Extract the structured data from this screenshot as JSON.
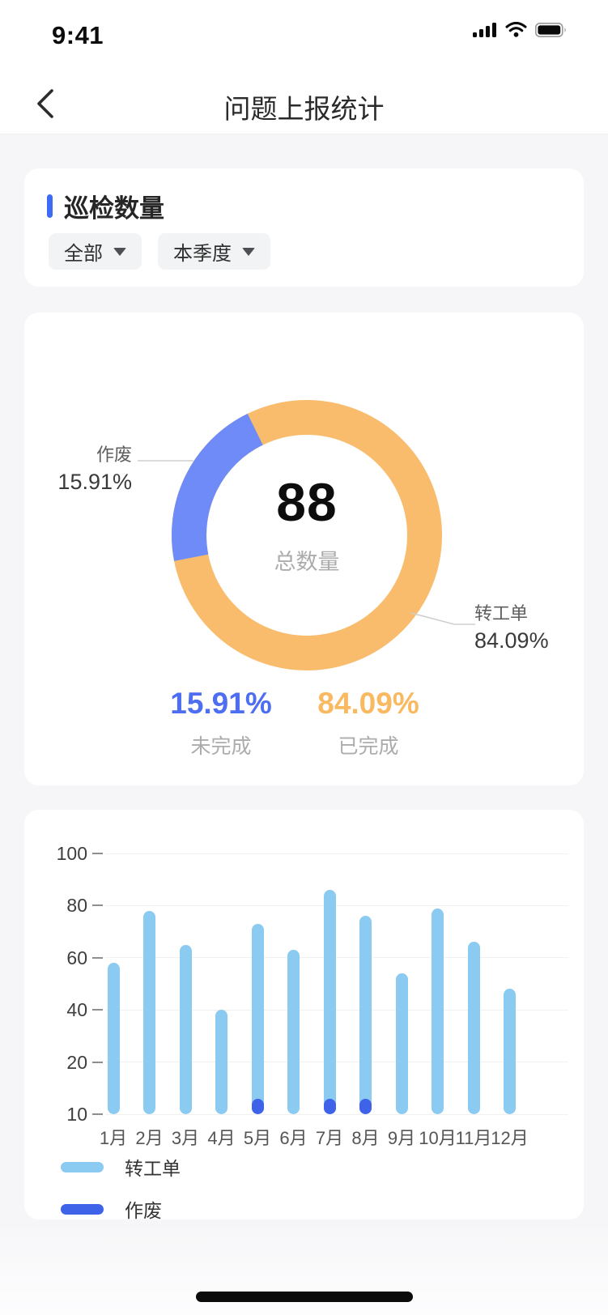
{
  "status_bar": {
    "time": "9:41",
    "icons": [
      "signal-icon",
      "wifi-icon",
      "battery-icon"
    ]
  },
  "nav": {
    "title": "问题上报统计",
    "back_icon": "chevron-left"
  },
  "filter_card": {
    "section_title": "巡检数量",
    "dropdowns": [
      {
        "label": "全部"
      },
      {
        "label": "本季度"
      }
    ]
  },
  "donut_card": {
    "center_value": "88",
    "center_label": "总数量",
    "callouts": [
      {
        "name": "作废",
        "pct": "15.91%",
        "side": "left"
      },
      {
        "name": "转工单",
        "pct": "84.09%",
        "side": "right"
      }
    ],
    "stats": [
      {
        "value": "15.91%",
        "label": "未完成",
        "color": "#4E6EF2"
      },
      {
        "value": "84.09%",
        "label": "已完成",
        "color": "#F9B961"
      }
    ]
  },
  "colors": {
    "accent_blue": "#3D6BF5",
    "donut_orange": "#F9BC6D",
    "donut_blue": "#6E8BF8",
    "bar_light_blue": "#8BCBF2",
    "bar_dark_blue": "#3E63E9",
    "connector_gray": "#CFCFCF"
  },
  "chart_data": [
    {
      "type": "pie",
      "title": "",
      "total": 88,
      "center_value": "88",
      "center_label": "总数量",
      "slices": [
        {
          "name": "转工单",
          "value": 74,
          "pct_label": "84.09%",
          "color": "#F9BC6D"
        },
        {
          "name": "作废",
          "value": 14,
          "pct_label": "15.91%",
          "color": "#6E8BF8"
        }
      ],
      "layout": {
        "donut": true,
        "hole_ratio": 0.745,
        "blue_arc_start_deg": 259,
        "blue_arc_end_deg": 334
      }
    },
    {
      "type": "bar",
      "categories": [
        "1月",
        "2月",
        "3月",
        "4月",
        "5月",
        "6月",
        "7月",
        "8月",
        "9月",
        "10月",
        "11月",
        "12月"
      ],
      "series": [
        {
          "name": "转工单",
          "color": "#8BCBF2",
          "values": [
            58,
            78,
            65,
            40,
            73,
            63,
            86,
            76,
            54,
            79,
            66,
            48
          ]
        },
        {
          "name": "作废",
          "color": "#3E63E9",
          "values": [
            0,
            0,
            0,
            0,
            13,
            0,
            13,
            13,
            0,
            0,
            0,
            0
          ]
        }
      ],
      "y_ticks": [
        10,
        20,
        40,
        60,
        80,
        100
      ],
      "ylim": [
        10,
        100
      ],
      "xlabel": "",
      "ylabel": "",
      "grid": true,
      "legend_position": "bottom-left"
    }
  ]
}
